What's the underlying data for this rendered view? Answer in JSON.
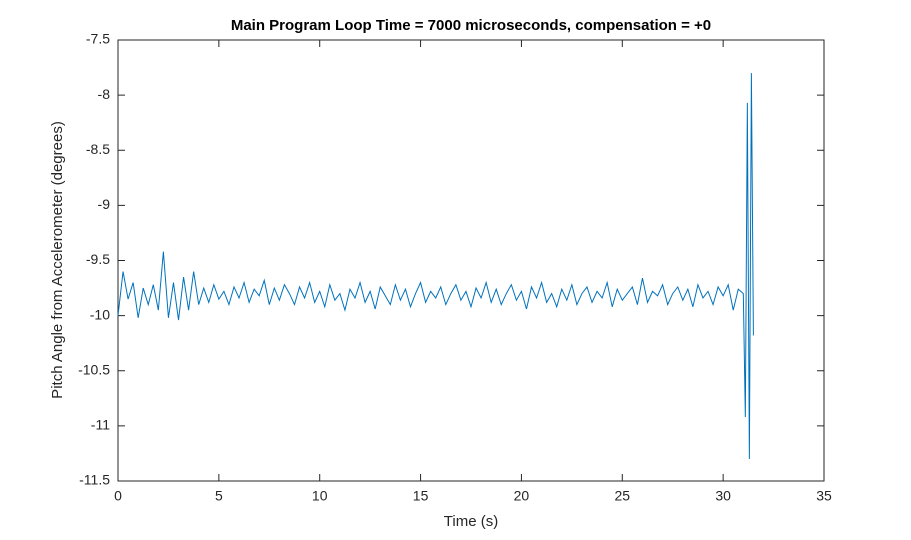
{
  "chart_data": {
    "type": "line",
    "title": "Main Program Loop Time = 7000 microseconds, compensation = +0",
    "x_label": "Time (s)",
    "y_label": "Pitch Angle from Accelerometer (degrees)",
    "xlim": [
      0,
      35
    ],
    "xticks": [
      0,
      5,
      10,
      15,
      20,
      25,
      30,
      35
    ],
    "ylim": [
      -11.5,
      -7.5
    ],
    "yticks": [
      -7.5,
      -8,
      -8.5,
      -9,
      -9.5,
      -10,
      -10.5,
      -11,
      -11.5
    ],
    "grid": false,
    "x": [
      0,
      0.25,
      0.5,
      0.75,
      1,
      1.25,
      1.5,
      1.75,
      2,
      2.25,
      2.5,
      2.75,
      3,
      3.25,
      3.5,
      3.75,
      4,
      4.25,
      4.5,
      4.75,
      5,
      5.25,
      5.5,
      5.75,
      6,
      6.25,
      6.5,
      6.75,
      7,
      7.25,
      7.5,
      7.75,
      8,
      8.25,
      8.5,
      8.75,
      9,
      9.25,
      9.5,
      9.75,
      10,
      10.25,
      10.5,
      10.75,
      11,
      11.25,
      11.5,
      11.75,
      12,
      12.25,
      12.5,
      12.75,
      13,
      13.25,
      13.5,
      13.75,
      14,
      14.25,
      14.5,
      14.75,
      15,
      15.25,
      15.5,
      15.75,
      16,
      16.25,
      16.5,
      16.75,
      17,
      17.25,
      17.5,
      17.75,
      18,
      18.25,
      18.5,
      18.75,
      19,
      19.25,
      19.5,
      19.75,
      20,
      20.25,
      20.5,
      20.75,
      21,
      21.25,
      21.5,
      21.75,
      22,
      22.25,
      22.5,
      22.75,
      23,
      23.25,
      23.5,
      23.75,
      24,
      24.25,
      24.5,
      24.75,
      25,
      25.25,
      25.5,
      25.75,
      26,
      26.25,
      26.5,
      26.75,
      27,
      27.25,
      27.5,
      27.75,
      28,
      28.25,
      28.5,
      28.75,
      29,
      29.25,
      29.5,
      29.75,
      30,
      30.25,
      30.5,
      30.75,
      31.0,
      31.1,
      31.2,
      31.3,
      31.4,
      31.5
    ],
    "series": [
      {
        "color": "#0072bd",
        "values": [
          -10.0,
          -9.6,
          -9.85,
          -9.7,
          -10.02,
          -9.75,
          -9.9,
          -9.72,
          -9.95,
          -9.42,
          -10.02,
          -9.7,
          -10.04,
          -9.65,
          -9.95,
          -9.6,
          -9.9,
          -9.75,
          -9.88,
          -9.72,
          -9.85,
          -9.78,
          -9.9,
          -9.74,
          -9.84,
          -9.7,
          -9.88,
          -9.76,
          -9.82,
          -9.68,
          -9.9,
          -9.75,
          -9.86,
          -9.72,
          -9.8,
          -9.9,
          -9.74,
          -9.84,
          -9.7,
          -9.88,
          -9.78,
          -9.92,
          -9.72,
          -9.86,
          -9.8,
          -9.95,
          -9.76,
          -9.84,
          -9.7,
          -9.88,
          -9.78,
          -9.94,
          -9.74,
          -9.82,
          -9.9,
          -9.72,
          -9.86,
          -9.76,
          -9.92,
          -9.8,
          -9.7,
          -9.88,
          -9.78,
          -9.84,
          -9.74,
          -9.9,
          -9.8,
          -9.72,
          -9.86,
          -9.78,
          -9.92,
          -9.75,
          -9.84,
          -9.7,
          -9.88,
          -9.76,
          -9.9,
          -9.8,
          -9.72,
          -9.86,
          -9.78,
          -9.94,
          -9.74,
          -9.84,
          -9.7,
          -9.88,
          -9.8,
          -9.92,
          -9.76,
          -9.86,
          -9.72,
          -9.9,
          -9.8,
          -9.74,
          -9.88,
          -9.78,
          -9.84,
          -9.7,
          -9.92,
          -9.76,
          -9.86,
          -9.8,
          -9.74,
          -9.9,
          -9.66,
          -9.88,
          -9.78,
          -9.82,
          -9.72,
          -9.9,
          -9.8,
          -9.74,
          -9.86,
          -9.76,
          -9.92,
          -9.72,
          -9.84,
          -9.78,
          -9.9,
          -9.74,
          -9.82,
          -9.72,
          -9.95,
          -9.76,
          -9.8,
          -10.92,
          -8.07,
          -11.3,
          -7.8,
          -10.18
        ]
      }
    ]
  }
}
